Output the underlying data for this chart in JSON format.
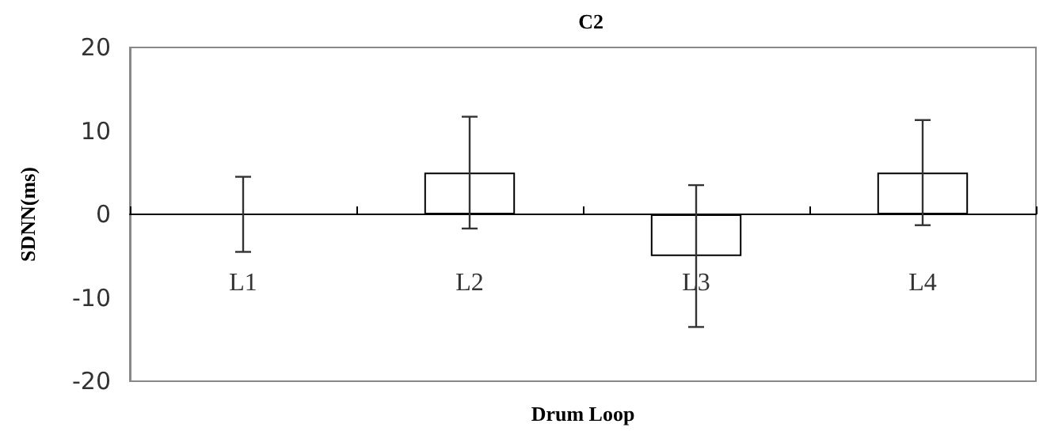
{
  "chart_data": {
    "type": "bar",
    "title": "C2",
    "xlabel": "Drum Loop",
    "ylabel": "SDNN(ms)",
    "categories": [
      "L1",
      "L2",
      "L3",
      "L4"
    ],
    "values": [
      0,
      5,
      -5,
      5
    ],
    "errors": [
      4.5,
      6.7,
      8.5,
      6.3
    ],
    "color": "#ffffff",
    "ylim": [
      -20,
      20
    ],
    "yticks": [
      -20,
      -10,
      0,
      10,
      20
    ],
    "grid": false
  }
}
